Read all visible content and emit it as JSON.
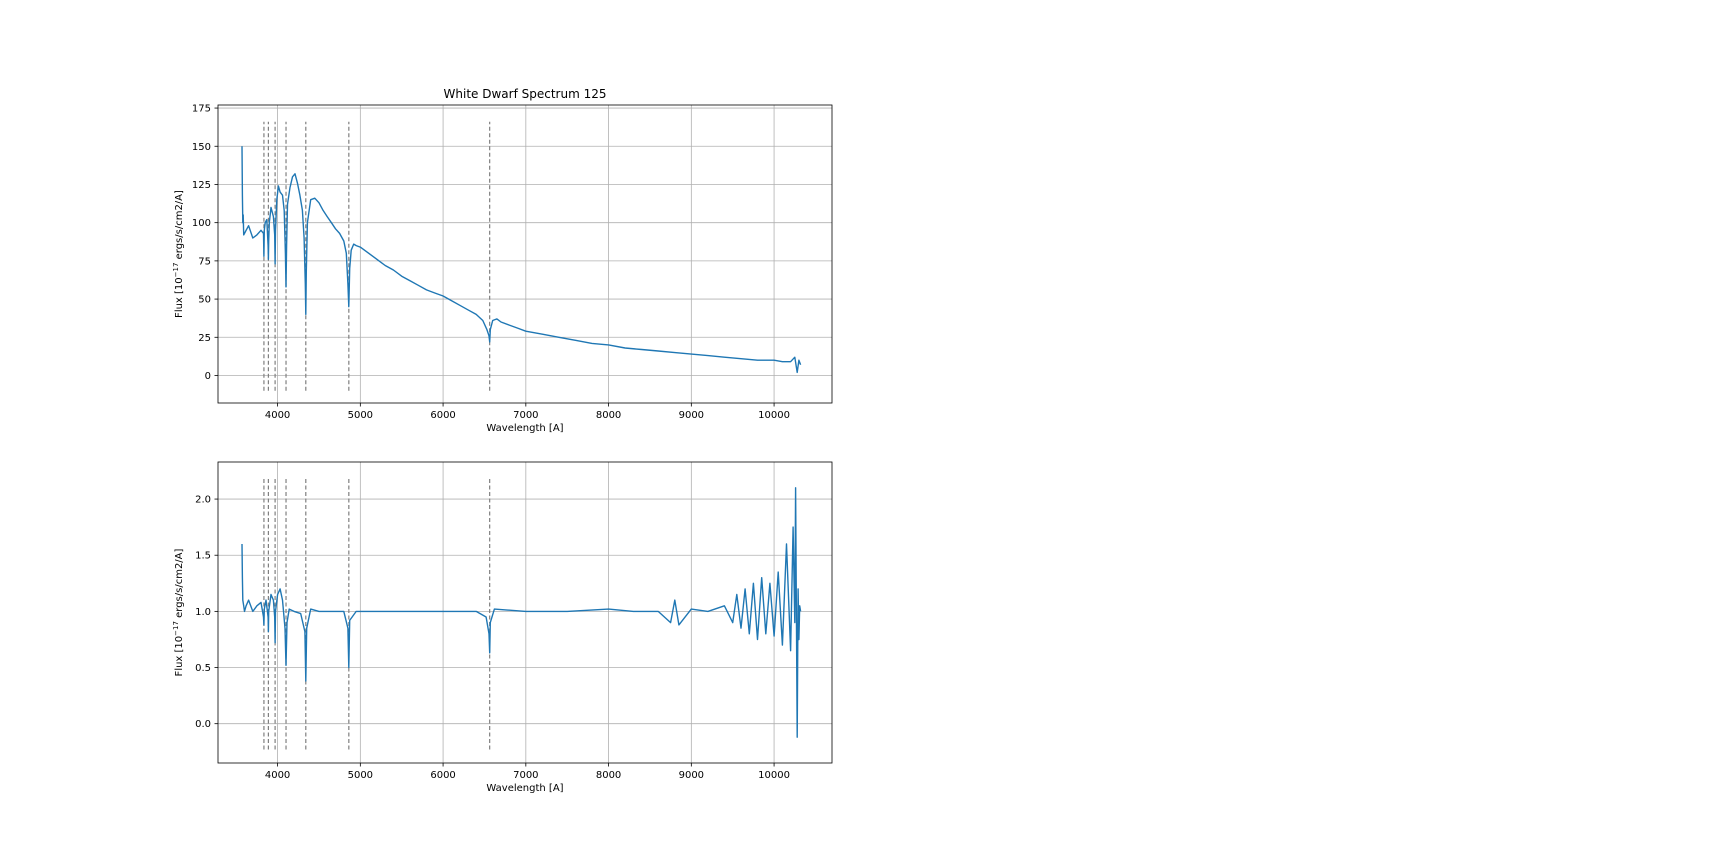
{
  "chart_data": [
    {
      "type": "line",
      "title": "White Dwarf Spectrum 125",
      "xlabel": "Wavelength [A]",
      "ylabel_prefix": "Flux [10",
      "ylabel_exp": "−17",
      "ylabel_suffix": " ergs/s/cm2/A]",
      "xlim": [
        3280,
        10700
      ],
      "ylim": [
        -18,
        177
      ],
      "xticks": [
        4000,
        5000,
        6000,
        7000,
        8000,
        9000,
        10000
      ],
      "yticks": [
        0,
        25,
        50,
        75,
        100,
        125,
        150,
        175
      ],
      "grid": true,
      "line_color": "#1f77b4",
      "line_marker_color": "#808080",
      "line_markers": {
        "wavelengths": [
          3835,
          3889,
          3970,
          4102,
          4341,
          4861,
          6563
        ],
        "from": -10,
        "to": 166
      },
      "series": [
        {
          "x": [
            3570,
            3575,
            3580,
            3585,
            3590,
            3600,
            3620,
            3650,
            3700,
            3750,
            3800,
            3830,
            3835,
            3840,
            3850,
            3870,
            3885,
            3889,
            3893,
            3900,
            3920,
            3950,
            3965,
            3970,
            3975,
            3990,
            4010,
            4030,
            4060,
            4080,
            4095,
            4102,
            4109,
            4120,
            4150,
            4180,
            4210,
            4240,
            4270,
            4300,
            4320,
            4335,
            4341,
            4347,
            4360,
            4400,
            4450,
            4500,
            4550,
            4600,
            4650,
            4700,
            4750,
            4800,
            4830,
            4850,
            4861,
            4872,
            4890,
            4920,
            4950,
            5000,
            5100,
            5200,
            5300,
            5400,
            5500,
            5600,
            5700,
            5800,
            5900,
            6000,
            6100,
            6200,
            6300,
            6400,
            6480,
            6530,
            6555,
            6563,
            6571,
            6600,
            6650,
            6700,
            6800,
            6900,
            7000,
            7200,
            7400,
            7600,
            7800,
            8000,
            8200,
            8400,
            8600,
            8800,
            9000,
            9200,
            9400,
            9600,
            9800,
            10000,
            10100,
            10200,
            10250,
            10280,
            10300,
            10320
          ],
          "y": [
            150,
            118,
            100,
            105,
            92,
            93,
            95,
            98,
            90,
            92,
            95,
            93,
            78,
            95,
            100,
            102,
            85,
            76,
            88,
            100,
            110,
            104,
            92,
            73,
            95,
            115,
            124,
            120,
            118,
            108,
            80,
            58,
            85,
            112,
            123,
            130,
            132,
            126,
            118,
            108,
            90,
            60,
            40,
            68,
            100,
            115,
            116,
            113,
            108,
            104,
            100,
            96,
            93,
            88,
            80,
            60,
            45,
            70,
            82,
            86,
            85,
            84,
            80,
            76,
            72,
            69,
            65,
            62,
            59,
            56,
            54,
            52,
            49,
            46,
            43,
            40,
            36,
            30,
            26,
            22,
            30,
            36,
            37,
            35,
            33,
            31,
            29,
            27,
            25,
            23,
            21,
            20,
            18,
            17,
            16,
            15,
            14,
            13,
            12,
            11,
            10,
            10,
            9,
            9,
            12,
            2,
            10,
            7
          ]
        }
      ]
    },
    {
      "type": "line",
      "title": "",
      "xlabel": "Wavelength [A]",
      "ylabel_prefix": "Flux [10",
      "ylabel_exp": "−17",
      "ylabel_suffix": " ergs/s/cm2/A]",
      "xlim": [
        3280,
        10700
      ],
      "ylim": [
        -0.35,
        2.33
      ],
      "xticks": [
        4000,
        5000,
        6000,
        7000,
        8000,
        9000,
        10000
      ],
      "yticks": [
        0.0,
        0.5,
        1.0,
        1.5,
        2.0
      ],
      "ytick_labels": [
        "0.0",
        "0.5",
        "1.0",
        "1.5",
        "2.0"
      ],
      "grid": true,
      "line_color": "#1f77b4",
      "line_marker_color": "#808080",
      "line_markers": {
        "wavelengths": [
          3835,
          3889,
          3970,
          4102,
          4341,
          4861,
          6563
        ],
        "from": -0.23,
        "to": 2.2
      },
      "series": [
        {
          "x": [
            3570,
            3575,
            3580,
            3590,
            3600,
            3620,
            3650,
            3700,
            3750,
            3800,
            3830,
            3835,
            3840,
            3860,
            3885,
            3889,
            3893,
            3920,
            3950,
            3965,
            3970,
            3975,
            4000,
            4030,
            4060,
            4090,
            4102,
            4114,
            4140,
            4200,
            4280,
            4330,
            4341,
            4352,
            4400,
            4500,
            4600,
            4700,
            4800,
            4850,
            4861,
            4872,
            4950,
            5200,
            5500,
            5800,
            6100,
            6400,
            6520,
            6555,
            6563,
            6571,
            6620,
            7000,
            7500,
            8000,
            8300,
            8600,
            8750,
            8800,
            8850,
            9000,
            9200,
            9400,
            9500,
            9550,
            9600,
            9650,
            9700,
            9750,
            9800,
            9850,
            9900,
            9950,
            10000,
            10050,
            10100,
            10150,
            10200,
            10230,
            10250,
            10260,
            10280,
            10290,
            10300,
            10310,
            10320
          ],
          "y": [
            1.6,
            1.3,
            1.1,
            1.05,
            1.0,
            1.05,
            1.1,
            1.0,
            1.05,
            1.08,
            0.95,
            0.88,
            1.02,
            1.1,
            0.95,
            0.82,
            1.0,
            1.15,
            1.1,
            0.95,
            0.72,
            1.0,
            1.15,
            1.2,
            1.1,
            0.85,
            0.52,
            0.9,
            1.02,
            1.0,
            0.98,
            0.82,
            0.38,
            0.85,
            1.02,
            1.0,
            1.0,
            1.0,
            1.0,
            0.85,
            0.5,
            0.92,
            1.0,
            1.0,
            1.0,
            1.0,
            1.0,
            1.0,
            0.95,
            0.8,
            0.63,
            0.9,
            1.02,
            1.0,
            1.0,
            1.02,
            1.0,
            1.0,
            0.9,
            1.1,
            0.88,
            1.02,
            1.0,
            1.05,
            0.9,
            1.15,
            0.85,
            1.2,
            0.8,
            1.25,
            0.75,
            1.3,
            0.8,
            1.25,
            0.78,
            1.35,
            0.7,
            1.6,
            0.65,
            1.75,
            0.9,
            2.1,
            -0.12,
            1.2,
            0.75,
            1.05,
            1.0
          ]
        }
      ]
    }
  ]
}
